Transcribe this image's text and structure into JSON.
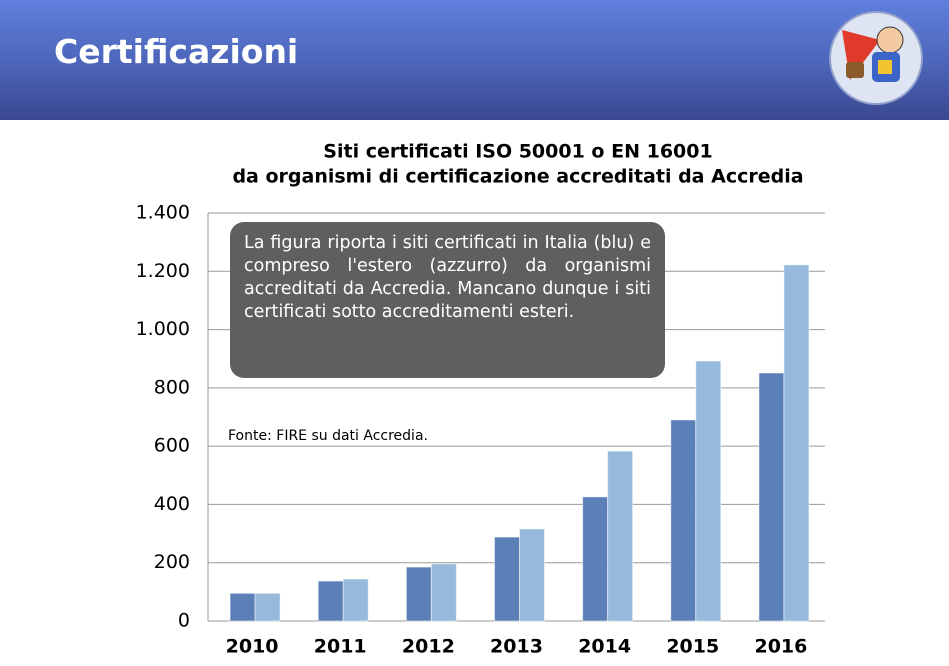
{
  "header": {
    "title": "Certificazioni"
  },
  "chart_data": {
    "type": "bar",
    "title": [
      "Siti certificati ISO 50001 o EN 16001",
      "da organismi di certificazione accreditati da Accredia"
    ],
    "categories": [
      "2010",
      "2011",
      "2012",
      "2013",
      "2014",
      "2015",
      "2016"
    ],
    "series": [
      {
        "color": "#5b80b8",
        "values": [
          95,
          137,
          185,
          288,
          426,
          690,
          851
        ]
      },
      {
        "color": "#97b9dc",
        "values": [
          95,
          144,
          196,
          316,
          583,
          892,
          1222
        ]
      }
    ],
    "ylim": [
      0,
      1400
    ],
    "yticks": [
      0,
      200,
      400,
      600,
      800,
      {
        "value": 1000,
        "label": "1.000"
      },
      {
        "value": 1200,
        "label": "1.200"
      },
      {
        "value": 1400,
        "label": "1.400"
      }
    ],
    "grid": true,
    "annotations": [
      "La figura riporta i siti certificati in Italia (blu) e compreso l'estero (azzurro) da organismi accreditati da Accredia. Mancano dunque i siti certificati sotto accreditamenti esteri.",
      "Fonte: FIRE su dati Accredia."
    ]
  }
}
